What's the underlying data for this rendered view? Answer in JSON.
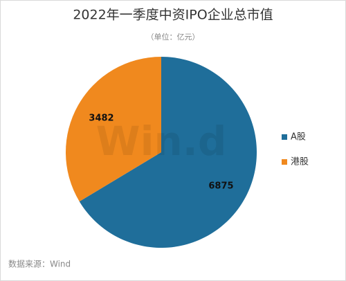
{
  "chart_data": {
    "type": "pie",
    "title": "2022年一季度中资IPO企业总市值",
    "subtitle": "（单位：亿元）",
    "categories": [
      "A股",
      "港股"
    ],
    "values": [
      6875,
      3482
    ],
    "colors": [
      "#1f6e9a",
      "#f0891e"
    ],
    "watermark": "Win.d",
    "source": "数据来源：Wind",
    "legend": "right"
  }
}
